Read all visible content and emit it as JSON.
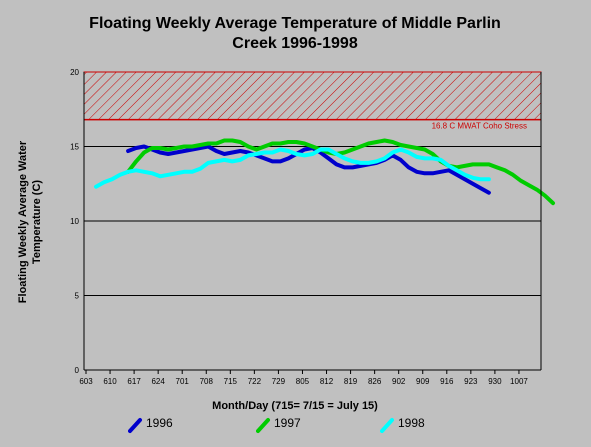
{
  "chart_data": {
    "type": "line",
    "title": "Floating Weekly Average Temperature of Middle Parlin\nCreek 1996-1998",
    "xlabel": "Month/Day (715= 7/15 = July 15)",
    "ylabel": "Floating Weekly Average Water\nTemperature (C)",
    "x_tick_labels": [
      "603",
      "610",
      "617",
      "624",
      "701",
      "708",
      "715",
      "722",
      "729",
      "805",
      "812",
      "819",
      "826",
      "902",
      "909",
      "916",
      "923",
      "930",
      "1007"
    ],
    "y_ticks": [
      0,
      5,
      10,
      15,
      20
    ],
    "ylim": [
      0,
      20
    ],
    "grid": "horizontal",
    "legend_position": "bottom",
    "threshold": {
      "label": "16.8 C MWAT Coho Stress",
      "value": 16.8,
      "upper": 20,
      "color": "#cc0000"
    },
    "series": [
      {
        "name": "1996",
        "color": "#0000cc",
        "points": [
          [
            4,
            14.7
          ],
          [
            5,
            14.9
          ],
          [
            6,
            15.0
          ],
          [
            7,
            14.8
          ],
          [
            8,
            14.6
          ],
          [
            9,
            14.5
          ],
          [
            10,
            14.6
          ],
          [
            11,
            14.7
          ],
          [
            12,
            14.8
          ],
          [
            13,
            14.9
          ],
          [
            14,
            15.0
          ],
          [
            15,
            14.7
          ],
          [
            16,
            14.5
          ],
          [
            17,
            14.6
          ],
          [
            18,
            14.7
          ],
          [
            19,
            14.6
          ],
          [
            20,
            14.4
          ],
          [
            21,
            14.2
          ],
          [
            22,
            14.0
          ],
          [
            23,
            14.0
          ],
          [
            24,
            14.2
          ],
          [
            25,
            14.5
          ],
          [
            26,
            14.8
          ],
          [
            27,
            14.9
          ],
          [
            28,
            14.6
          ],
          [
            29,
            14.2
          ],
          [
            30,
            13.8
          ],
          [
            31,
            13.6
          ],
          [
            32,
            13.6
          ],
          [
            33,
            13.7
          ],
          [
            34,
            13.8
          ],
          [
            35,
            13.9
          ],
          [
            36,
            14.1
          ],
          [
            37,
            14.4
          ],
          [
            38,
            14.1
          ],
          [
            39,
            13.6
          ],
          [
            40,
            13.3
          ],
          [
            41,
            13.2
          ],
          [
            42,
            13.2
          ],
          [
            43,
            13.3
          ],
          [
            44,
            13.4
          ],
          [
            45,
            13.1
          ],
          [
            46,
            12.8
          ],
          [
            47,
            12.5
          ],
          [
            48,
            12.2
          ],
          [
            49,
            11.9
          ]
        ]
      },
      {
        "name": "1997",
        "color": "#00cc00",
        "points": [
          [
            4,
            13.3
          ],
          [
            5,
            14.0
          ],
          [
            6,
            14.6
          ],
          [
            7,
            14.9
          ],
          [
            8,
            14.9
          ],
          [
            9,
            14.8
          ],
          [
            10,
            14.9
          ],
          [
            11,
            15.0
          ],
          [
            12,
            15.0
          ],
          [
            13,
            15.1
          ],
          [
            14,
            15.2
          ],
          [
            15,
            15.2
          ],
          [
            16,
            15.4
          ],
          [
            17,
            15.4
          ],
          [
            18,
            15.3
          ],
          [
            19,
            15.0
          ],
          [
            20,
            14.8
          ],
          [
            21,
            15.0
          ],
          [
            22,
            15.2
          ],
          [
            23,
            15.2
          ],
          [
            24,
            15.3
          ],
          [
            25,
            15.3
          ],
          [
            26,
            15.2
          ],
          [
            27,
            15.0
          ],
          [
            28,
            14.8
          ],
          [
            29,
            14.6
          ],
          [
            30,
            14.5
          ],
          [
            31,
            14.6
          ],
          [
            32,
            14.8
          ],
          [
            33,
            15.0
          ],
          [
            34,
            15.2
          ],
          [
            35,
            15.3
          ],
          [
            36,
            15.4
          ],
          [
            37,
            15.3
          ],
          [
            38,
            15.1
          ],
          [
            39,
            15.0
          ],
          [
            40,
            14.9
          ],
          [
            41,
            14.8
          ],
          [
            42,
            14.5
          ],
          [
            43,
            14.0
          ],
          [
            44,
            13.7
          ],
          [
            45,
            13.6
          ],
          [
            46,
            13.7
          ],
          [
            47,
            13.8
          ],
          [
            48,
            13.8
          ],
          [
            49,
            13.8
          ],
          [
            50,
            13.6
          ],
          [
            51,
            13.4
          ],
          [
            52,
            13.1
          ],
          [
            53,
            12.7
          ],
          [
            54,
            12.4
          ],
          [
            55,
            12.1
          ],
          [
            56,
            11.7
          ],
          [
            57,
            11.2
          ]
        ]
      },
      {
        "name": "1998",
        "color": "#00ffff",
        "points": [
          [
            0,
            12.3
          ],
          [
            1,
            12.6
          ],
          [
            2,
            12.8
          ],
          [
            3,
            13.1
          ],
          [
            4,
            13.3
          ],
          [
            5,
            13.4
          ],
          [
            6,
            13.3
          ],
          [
            7,
            13.2
          ],
          [
            8,
            13.0
          ],
          [
            9,
            13.1
          ],
          [
            10,
            13.2
          ],
          [
            11,
            13.3
          ],
          [
            12,
            13.3
          ],
          [
            13,
            13.5
          ],
          [
            14,
            13.9
          ],
          [
            15,
            14.0
          ],
          [
            16,
            14.1
          ],
          [
            17,
            14.0
          ],
          [
            18,
            14.1
          ],
          [
            19,
            14.4
          ],
          [
            20,
            14.5
          ],
          [
            21,
            14.6
          ],
          [
            22,
            14.6
          ],
          [
            23,
            14.8
          ],
          [
            24,
            14.7
          ],
          [
            25,
            14.5
          ],
          [
            26,
            14.4
          ],
          [
            27,
            14.5
          ],
          [
            28,
            14.8
          ],
          [
            29,
            14.8
          ],
          [
            30,
            14.5
          ],
          [
            31,
            14.2
          ],
          [
            32,
            14.0
          ],
          [
            33,
            13.9
          ],
          [
            34,
            13.9
          ],
          [
            35,
            14.0
          ],
          [
            36,
            14.2
          ],
          [
            37,
            14.6
          ],
          [
            38,
            14.8
          ],
          [
            39,
            14.6
          ],
          [
            40,
            14.3
          ],
          [
            41,
            14.2
          ],
          [
            42,
            14.2
          ],
          [
            43,
            14.1
          ],
          [
            44,
            13.7
          ],
          [
            45,
            13.4
          ],
          [
            46,
            13.1
          ],
          [
            47,
            12.9
          ],
          [
            48,
            12.8
          ],
          [
            49,
            12.8
          ]
        ]
      }
    ]
  }
}
